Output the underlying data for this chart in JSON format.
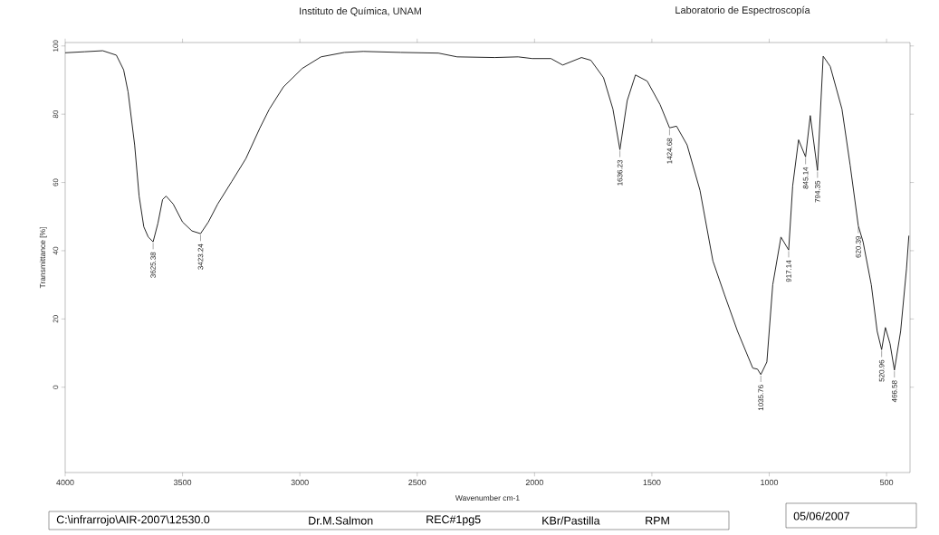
{
  "chart_data": {
    "type": "line",
    "title": "Instituto de Química, UNAM",
    "subtitle": "Laboratorio de Espectroscopía",
    "xlabel": "Wavenumber cm-1",
    "ylabel": "Transmittance [%]",
    "color": "#262626",
    "x": [
      4000,
      3918,
      3840,
      3782,
      3751,
      3732,
      3704,
      3685,
      3665,
      3646,
      3625.38,
      3605,
      3585,
      3570,
      3540,
      3500,
      3460,
      3423.24,
      3390,
      3350,
      3290,
      3230,
      3170,
      3130,
      3070,
      2990,
      2910,
      2810,
      2730,
      2570,
      2410,
      2330,
      2170,
      2070,
      2010,
      1930,
      1880,
      1800,
      1760,
      1706,
      1666,
      1636.23,
      1605,
      1570,
      1520,
      1465,
      1424.68,
      1395,
      1350,
      1295,
      1240,
      1190,
      1135,
      1070,
      1050,
      1035.76,
      1010,
      985,
      970,
      950,
      917.14,
      900,
      875,
      845.14,
      825,
      794.35,
      770,
      740,
      690,
      655,
      620.39,
      600,
      565,
      540,
      520.96,
      505,
      485,
      466.58,
      440,
      415,
      405
    ],
    "values": [
      98,
      98.3,
      98.6,
      97.3,
      93,
      86.5,
      71,
      56,
      47,
      44,
      42.6,
      48,
      55,
      56,
      53.7,
      48.4,
      45.8,
      45,
      48.4,
      53.7,
      60.3,
      67,
      76,
      81.5,
      88,
      93.4,
      96.8,
      98.1,
      98.4,
      98.1,
      97.9,
      96.8,
      96.6,
      96.8,
      96.3,
      96.3,
      94.4,
      96.6,
      95.8,
      90.7,
      81.5,
      69.6,
      84,
      91.5,
      89.7,
      82.8,
      76,
      76.5,
      71,
      57.7,
      37,
      27,
      16.4,
      5.6,
      5.3,
      3.7,
      7.4,
      30,
      36,
      44,
      40.2,
      59,
      72.5,
      67.5,
      79.6,
      63.5,
      97,
      94,
      81.5,
      65,
      47.3,
      42.6,
      30,
      16.4,
      11,
      17.5,
      12.7,
      5,
      16.4,
      34.7,
      44.4
    ],
    "xlim": [
      4000,
      400
    ],
    "ylim": [
      -25,
      101
    ],
    "xticks": [
      4000,
      3500,
      3000,
      2500,
      2000,
      1500,
      1000,
      500
    ],
    "yticks": [
      0,
      20,
      40,
      60,
      80,
      100
    ],
    "annotations": [
      {
        "text": "3625.38",
        "x": 3625.38,
        "y": 42.6
      },
      {
        "text": "3423.24",
        "x": 3423.24,
        "y": 45
      },
      {
        "text": "1636.23",
        "x": 1636.23,
        "y": 69.6
      },
      {
        "text": "1424.68",
        "x": 1424.68,
        "y": 76
      },
      {
        "text": "1035.76",
        "x": 1035.76,
        "y": 3.7
      },
      {
        "text": "917.14",
        "x": 917.14,
        "y": 40.2
      },
      {
        "text": "845.14",
        "x": 845.14,
        "y": 67.5
      },
      {
        "text": "794.35",
        "x": 794.35,
        "y": 63.5
      },
      {
        "text": "620.39",
        "x": 620.39,
        "y": 47.3
      },
      {
        "text": "520.96",
        "x": 520.96,
        "y": 11
      },
      {
        "text": "466.58",
        "x": 466.58,
        "y": 5
      },
      "C:\\infrarrojo\\AIR-2007\\12530.0",
      "Dr.M.Salmon",
      "REC#1pg5",
      "KBr/Pastilla",
      "RPM",
      "05/06/2007"
    ]
  }
}
